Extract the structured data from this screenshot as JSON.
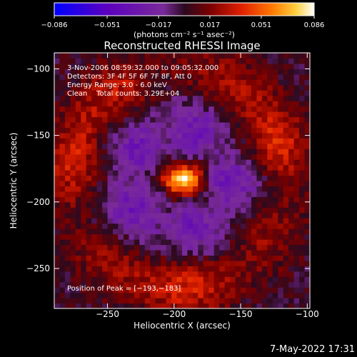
{
  "chart_data": {
    "type": "heatmap",
    "title": "Reconstructed RHESSI Image",
    "xlabel": "Heliocentric X (arcsec)",
    "ylabel": "Heliocentric Y (arcsec)",
    "xlim": [
      -290,
      -98
    ],
    "ylim": [
      -280,
      -88
    ],
    "x_ticks": [
      -250,
      -200,
      -150,
      -100
    ],
    "y_ticks": [
      -100,
      -150,
      -200,
      -250
    ],
    "x_tick_labels": [
      "−250",
      "−200",
      "−150",
      "−100"
    ],
    "y_tick_labels": [
      "−100",
      "−150",
      "−200",
      "−250"
    ],
    "colorbar": {
      "min": -0.086,
      "max": 0.086,
      "ticks": [
        -0.086,
        -0.051,
        -0.017,
        0.017,
        0.051,
        0.086
      ],
      "tick_labels": [
        "−0.086",
        "−0.051",
        "−0.017",
        "0.017",
        "0.051",
        "0.086"
      ],
      "unit_label": "(photons cm⁻² s⁻¹ asec⁻²)",
      "colors": [
        "#0000ff",
        "#5a00c0",
        "#7a2a99",
        "#2a0a20",
        "#7a0000",
        "#e02000",
        "#ff7a00",
        "#ffd040",
        "#ffffff"
      ]
    },
    "annotations": [
      "3-Nov-2006 08:59:32.000 to 09:05:32.000",
      "Detectors: 3F 4F 5F 6F 7F 8F, Att 0",
      "Energy Range: 3.0 - 6.0 keV",
      "Clean    Total counts: 3.29E+04"
    ],
    "peak_label": "Position of Peak = [−193,−183]",
    "peak": {
      "x": -193,
      "y": -183,
      "value": 0.086
    },
    "ring": {
      "center_x": -197,
      "center_y": -183,
      "radius": 78,
      "width": 24,
      "value": 0.035
    },
    "grid": false
  },
  "footer": {
    "timestamp": "7-May-2022 17:31"
  }
}
